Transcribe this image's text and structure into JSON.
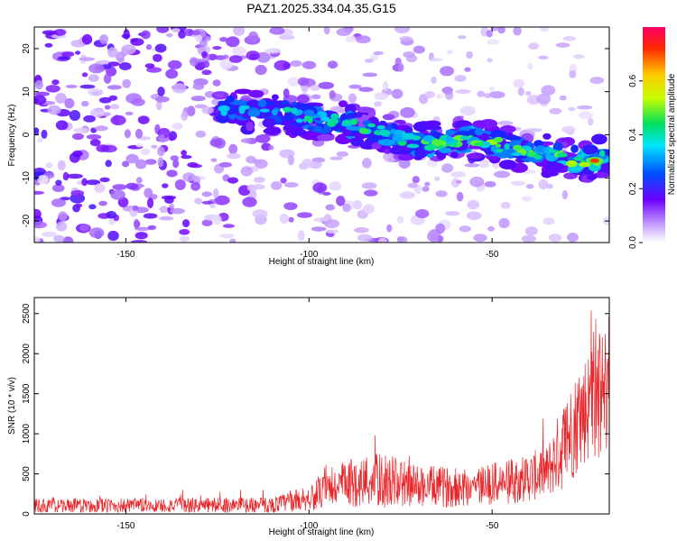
{
  "title": "PAZ1.2025.334.04.35.G15",
  "chart_data": [
    {
      "type": "heatmap",
      "xlabel": "Height of straight line (km)",
      "ylabel": "Frequency (Hz)",
      "xlim": [
        -175,
        -18
      ],
      "ylim": [
        -25,
        25
      ],
      "xticks": [
        -150,
        -100,
        -50
      ],
      "yticks": [
        -20,
        -10,
        0,
        10,
        20
      ],
      "colorbar": {
        "label": "Normalized spectral amplitude",
        "range": [
          0.0,
          0.8
        ],
        "ticks": [
          "0.0",
          "0.2",
          "0.4",
          "0.6"
        ],
        "tick_values": [
          0.0,
          0.2,
          0.4,
          0.6
        ]
      },
      "ridge": {
        "description_points": [
          {
            "x": -120,
            "y": 6
          },
          {
            "x": -100,
            "y": 4
          },
          {
            "x": -85,
            "y": 2
          },
          {
            "x": -70,
            "y": -2
          },
          {
            "x": -55,
            "y": -1
          },
          {
            "x": -40,
            "y": -4
          },
          {
            "x": -25,
            "y": -6
          },
          {
            "x": -18,
            "y": -5
          }
        ],
        "peak": {
          "x": -22,
          "y": -6,
          "value": 0.78
        }
      }
    },
    {
      "type": "line",
      "xlabel": "Height of straight line (km)",
      "ylabel": "SNR (10 * v/v)",
      "xlim": [
        -175,
        -18
      ],
      "ylim": [
        0,
        2700
      ],
      "xticks": [
        -150,
        -100,
        -50
      ],
      "yticks": [
        0,
        500,
        1000,
        1500,
        2000,
        2500
      ],
      "series": [
        {
          "name": "SNR",
          "color": "#e8262a",
          "envelope": [
            {
              "x": -175,
              "base": 100,
              "amp": 90
            },
            {
              "x": -110,
              "base": 110,
              "amp": 100
            },
            {
              "x": -100,
              "base": 200,
              "amp": 160
            },
            {
              "x": -90,
              "base": 380,
              "amp": 300
            },
            {
              "x": -80,
              "base": 420,
              "amp": 350
            },
            {
              "x": -70,
              "base": 350,
              "amp": 260
            },
            {
              "x": -60,
              "base": 330,
              "amp": 250
            },
            {
              "x": -45,
              "base": 400,
              "amp": 280
            },
            {
              "x": -35,
              "base": 520,
              "amp": 330
            },
            {
              "x": -30,
              "base": 900,
              "amp": 600
            },
            {
              "x": -25,
              "base": 1300,
              "amp": 700
            },
            {
              "x": -20,
              "base": 1500,
              "amp": 800
            },
            {
              "x": -18,
              "base": 1600,
              "amp": 800
            }
          ]
        }
      ]
    }
  ]
}
